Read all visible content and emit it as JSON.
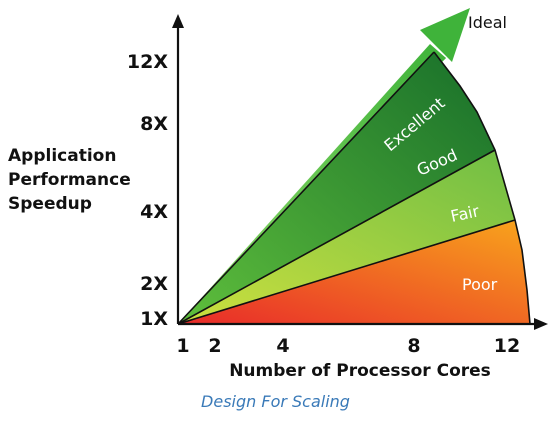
{
  "chart_data": {
    "type": "area",
    "title": "",
    "ylabel_lines": [
      "Application",
      "Performance",
      "Speedup"
    ],
    "xlabel": "Number of Processor Cores",
    "x_ticks": [
      {
        "label": "1",
        "value": 1
      },
      {
        "label": "2",
        "value": 2
      },
      {
        "label": "4",
        "value": 4
      },
      {
        "label": "8",
        "value": 8
      },
      {
        "label": "12",
        "value": 12
      }
    ],
    "y_ticks": [
      {
        "label": "1X",
        "value": 1
      },
      {
        "label": "2X",
        "value": 2
      },
      {
        "label": "4X",
        "value": 4
      },
      {
        "label": "8X",
        "value": 8
      },
      {
        "label": "12X",
        "value": 12
      }
    ],
    "ideal_label": "Ideal",
    "bands": [
      {
        "name": "Poor",
        "color_from": "#e8202a",
        "color_to": "#f7a21b"
      },
      {
        "name": "Fair",
        "color_from": "#f5c518",
        "color_to": "#e8ec3a"
      },
      {
        "name": "Good",
        "color_from": "#b8d94a",
        "color_to": "#7cc242"
      },
      {
        "name": "Excellent",
        "color_from": "#3aa43a",
        "color_to": "#1f7a2e"
      }
    ],
    "ideal_color": "#5cc84a"
  },
  "caption": "Design For Scaling"
}
